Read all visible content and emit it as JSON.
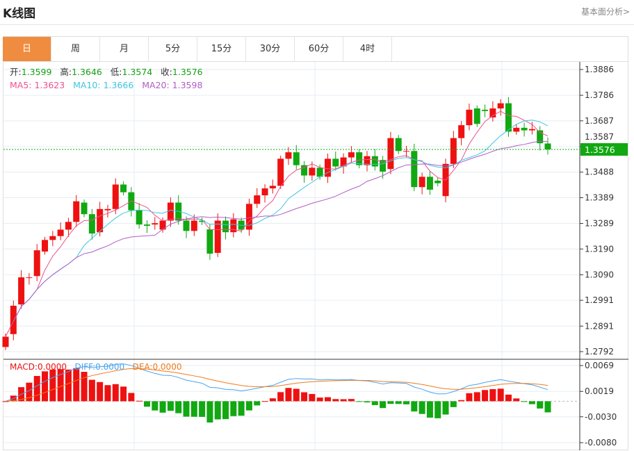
{
  "header": {
    "title": "K线图",
    "link": "基本面分析>"
  },
  "tabs": [
    "日",
    "周",
    "月",
    "5分",
    "15分",
    "30分",
    "60分",
    "4时"
  ],
  "active_tab": 0,
  "ohlc_info": {
    "open_label": "开:",
    "open": "1.3599",
    "high_label": "高:",
    "high": "1.3646",
    "low_label": "低:",
    "low": "1.3574",
    "close_label": "收:",
    "close": "1.3576"
  },
  "ma_info": {
    "ma5": "MA5: 1.3623",
    "ma10": "MA10: 1.3666",
    "ma20": "MA20: 1.3598"
  },
  "macd_info": {
    "macd": "MACD:0.0000",
    "diff": "DIFF:0.0000",
    "dea": "DEA:0.0000"
  },
  "colors": {
    "up": "#ee1111",
    "down": "#11a811",
    "ma5": "#f0508a",
    "ma10": "#3ec6e0",
    "ma20": "#b05cc8",
    "diff": "#4aa3ee",
    "dea": "#f07a1a",
    "accent": "#f08c3f"
  },
  "chart_data": {
    "type": "candlestick",
    "price_axis": {
      "ticks": [
        "1.3886",
        "1.3786",
        "1.3687",
        "1.3587",
        "1.3488",
        "1.3389",
        "1.3289",
        "1.3190",
        "1.3090",
        "1.2991",
        "1.2891",
        "1.2792"
      ],
      "range": [
        1.2792,
        1.3886
      ]
    },
    "last_price": "1.3576",
    "macd_axis": {
      "ticks": [
        "0.0069",
        "0.0019",
        "-0.0030",
        "-0.0080"
      ],
      "range": [
        -0.008,
        0.0069
      ]
    },
    "candles": [
      [
        1.281,
        1.285
      ],
      [
        1.286,
        1.297
      ],
      [
        1.2975,
        1.308
      ],
      [
        1.308,
        1.308
      ],
      [
        1.3085,
        1.3185
      ],
      [
        1.318,
        1.3225
      ],
      [
        1.3225,
        1.324
      ],
      [
        1.324,
        1.3265
      ],
      [
        1.3265,
        1.3295
      ],
      [
        1.3295,
        1.3375
      ],
      [
        1.337,
        1.3325
      ],
      [
        1.3325,
        1.325
      ],
      [
        1.3255,
        1.3345
      ],
      [
        1.334,
        1.3345
      ],
      [
        1.3345,
        1.344
      ],
      [
        1.344,
        1.341
      ],
      [
        1.341,
        1.334
      ],
      [
        1.334,
        1.3285
      ],
      [
        1.3285,
        1.328
      ],
      [
        1.3285,
        1.329
      ],
      [
        1.3265,
        1.33
      ],
      [
        1.33,
        1.337
      ],
      [
        1.337,
        1.33
      ],
      [
        1.33,
        1.326
      ],
      [
        1.326,
        1.33
      ],
      [
        1.33,
        1.3295
      ],
      [
        1.3266,
        1.3172
      ],
      [
        1.3175,
        1.33
      ],
      [
        1.33,
        1.3255
      ],
      [
        1.3255,
        1.3305
      ],
      [
        1.33,
        1.3265
      ],
      [
        1.3265,
        1.3365
      ],
      [
        1.3365,
        1.3398
      ],
      [
        1.3398,
        1.3425
      ],
      [
        1.3425,
        1.3435
      ],
      [
        1.3435,
        1.354
      ],
      [
        1.354,
        1.3565
      ],
      [
        1.3565,
        1.3515
      ],
      [
        1.3515,
        1.3475
      ],
      [
        1.3475,
        1.3505
      ],
      [
        1.3505,
        1.347
      ],
      [
        1.347,
        1.354
      ],
      [
        1.354,
        1.351
      ],
      [
        1.351,
        1.3545
      ],
      [
        1.3545,
        1.3565
      ],
      [
        1.3565,
        1.3515
      ],
      [
        1.3515,
        1.355
      ],
      [
        1.355,
        1.351
      ],
      [
        1.3535,
        1.349
      ],
      [
        1.35,
        1.362
      ],
      [
        1.362,
        1.357
      ],
      [
        1.357,
        1.357
      ],
      [
        1.357,
        1.343
      ],
      [
        1.343,
        1.347
      ],
      [
        1.347,
        1.342
      ],
      [
        1.3455,
        1.3445
      ],
      [
        1.3395,
        1.352
      ],
      [
        1.352,
        1.362
      ],
      [
        1.362,
        1.367
      ],
      [
        1.367,
        1.373
      ],
      [
        1.3735,
        1.3675
      ],
      [
        1.373,
        1.3725
      ],
      [
        1.37,
        1.3735
      ],
      [
        1.3735,
        1.3755
      ],
      [
        1.3755,
        1.3645
      ],
      [
        1.3645,
        1.366
      ],
      [
        1.366,
        1.365
      ],
      [
        1.365,
        1.3655
      ],
      [
        1.365,
        1.36
      ],
      [
        1.3599,
        1.3576
      ]
    ]
  }
}
